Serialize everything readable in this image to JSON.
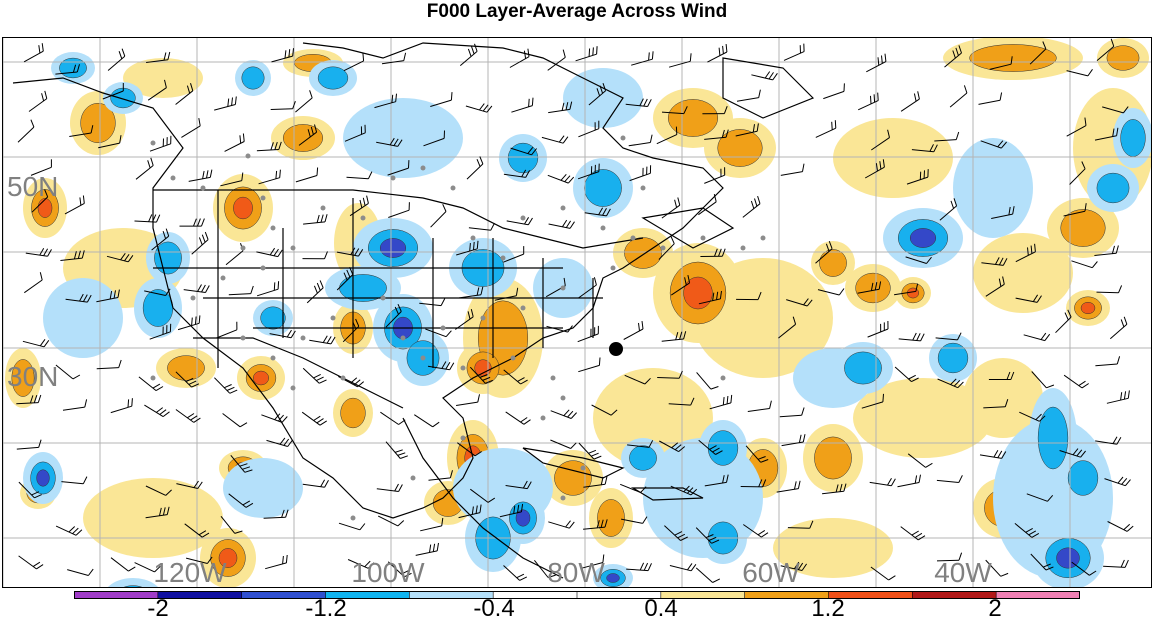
{
  "title": "F000 Layer-Average Across Wind",
  "latitude_labels": [
    "50N",
    "30N"
  ],
  "longitude_labels": [
    "120W",
    "100W",
    "80W",
    "60W",
    "40W"
  ],
  "colorbar": {
    "tick_labels": [
      "-2",
      "-1.2",
      "-0.4",
      "0.4",
      "1.2",
      "2"
    ],
    "colors": [
      "#a03cc8",
      "#1010a0",
      "#3050d0",
      "#10b4f0",
      "#b4e0fa",
      "#ffffff",
      "#ffffff",
      "#fae696",
      "#f0a018",
      "#f05018",
      "#b01818",
      "#f080b4"
    ]
  },
  "map_colors": {
    "light_blue": "#b4e0fa",
    "blue": "#18b0ee",
    "dark_blue": "#3448c8",
    "light_yellow": "#fae696",
    "orange": "#f0a018",
    "red_orange": "#f05a18",
    "gridline": "#b4b4b4",
    "station_dot": "#8c8c8c"
  },
  "marked_point": "large black dot off the US East Coast"
}
